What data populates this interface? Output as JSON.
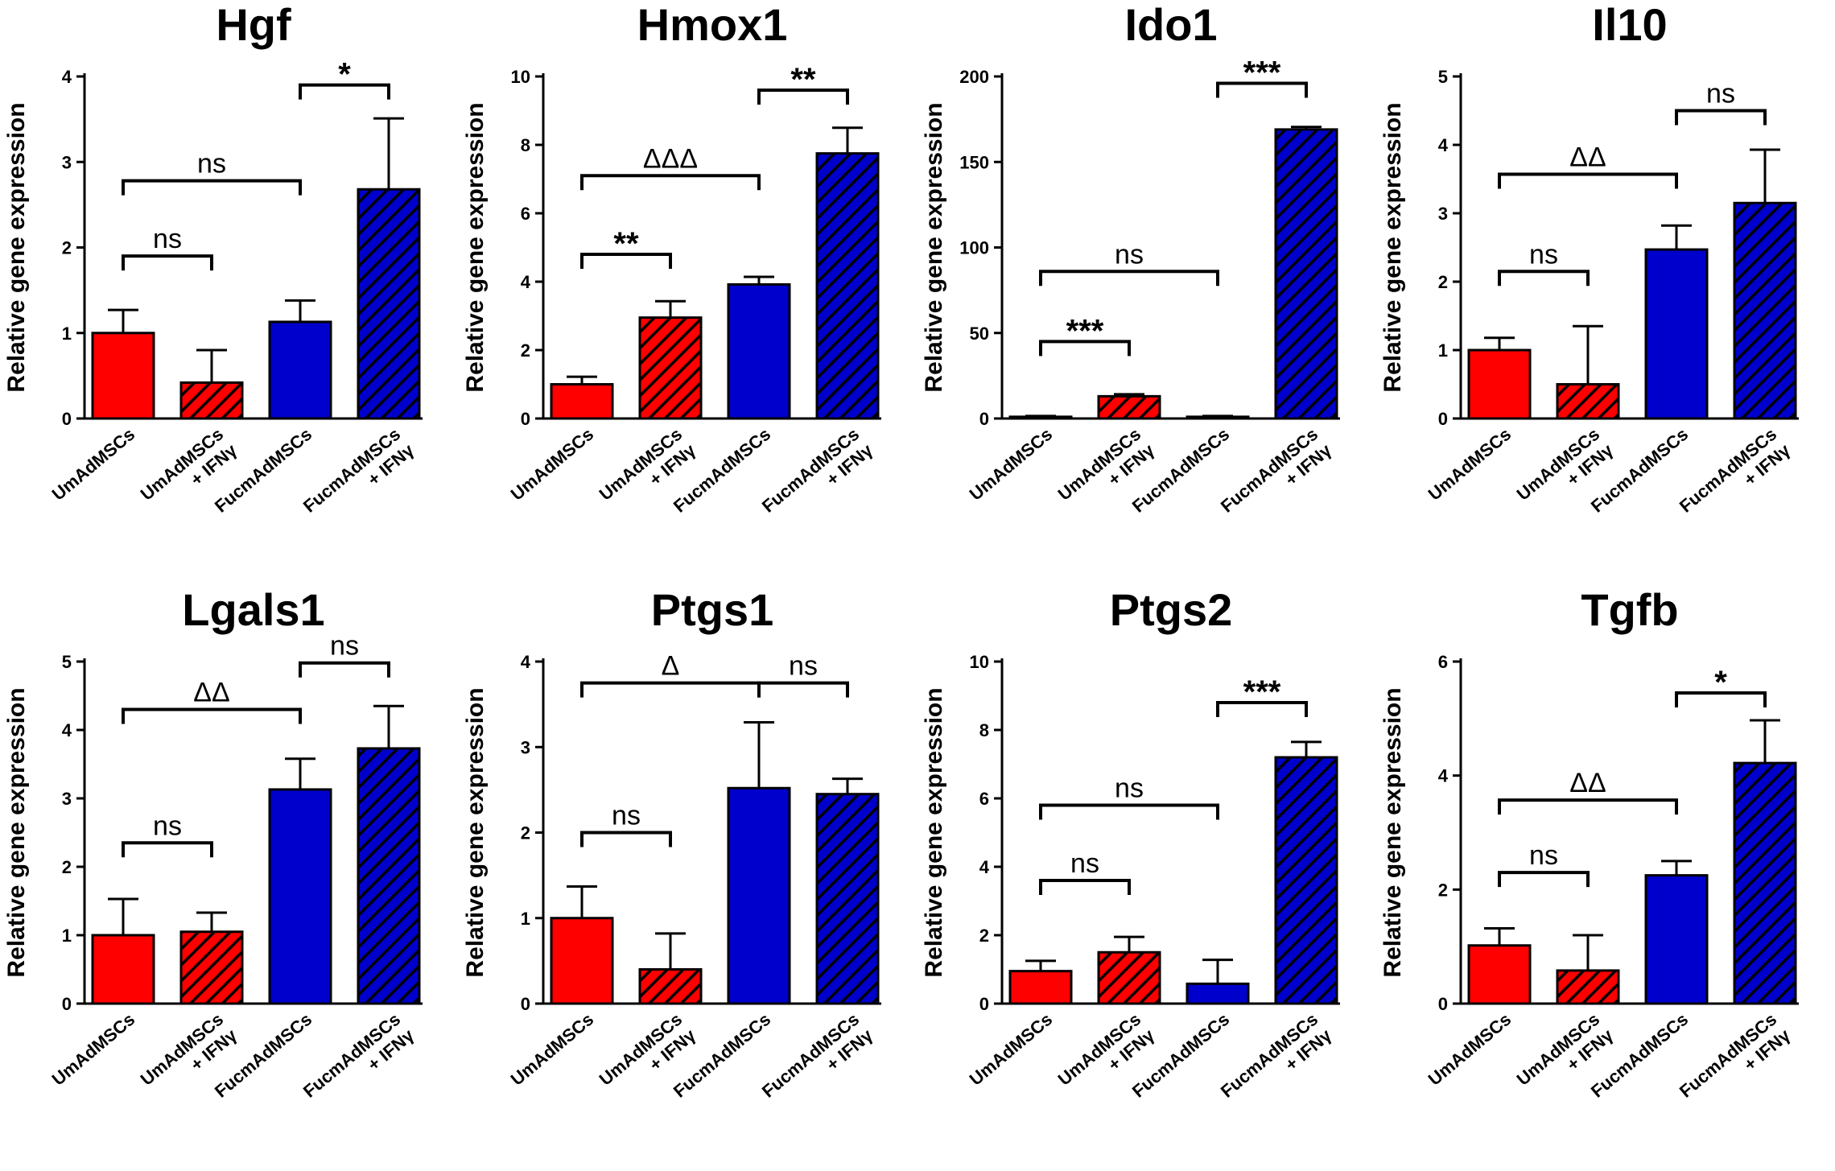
{
  "ylabel": "Relative gene expression",
  "categories": [
    "UmAdMSCs",
    "UmAdMSCs\n+ IFNγ",
    "FucmAdMSCs",
    "FucmAdMSCs\n+ IFNγ"
  ],
  "colors": {
    "red": "#ff0000",
    "blue": "#0000cc",
    "hatch": "#000000"
  },
  "chart_data": [
    {
      "type": "bar",
      "title": "Hgf",
      "ylabel": "Relative gene expression",
      "ylim": [
        0,
        4
      ],
      "yticks": [
        0,
        1,
        2,
        3,
        4
      ],
      "categories": [
        "UmAdMSCs",
        "UmAdMSCs + IFNγ",
        "FucmAdMSCs",
        "FucmAdMSCs + IFNγ"
      ],
      "values": [
        1.0,
        0.42,
        1.13,
        2.68
      ],
      "errors": [
        0.27,
        0.38,
        0.25,
        0.83
      ],
      "comparisons": [
        {
          "from": 0,
          "to": 1,
          "label": "ns",
          "y": 1.9
        },
        {
          "from": 0,
          "to": 2,
          "label": "ns",
          "y": 2.78
        },
        {
          "from": 2,
          "to": 3,
          "label": "*",
          "y": 3.9
        }
      ]
    },
    {
      "type": "bar",
      "title": "Hmox1",
      "ylabel": "Relative gene expression",
      "ylim": [
        0,
        10
      ],
      "yticks": [
        0,
        2,
        4,
        6,
        8,
        10
      ],
      "categories": [
        "UmAdMSCs",
        "UmAdMSCs + IFNγ",
        "FucmAdMSCs",
        "FucmAdMSCs + IFNγ"
      ],
      "values": [
        1.0,
        2.95,
        3.92,
        7.75
      ],
      "errors": [
        0.22,
        0.48,
        0.22,
        0.75
      ],
      "comparisons": [
        {
          "from": 0,
          "to": 1,
          "label": "**",
          "y": 4.8
        },
        {
          "from": 0,
          "to": 2,
          "label": "ΔΔΔ",
          "y": 7.1
        },
        {
          "from": 2,
          "to": 3,
          "label": "**",
          "y": 9.6
        }
      ]
    },
    {
      "type": "bar",
      "title": "Ido1",
      "ylabel": "Relative gene expression",
      "ylim": [
        0,
        200
      ],
      "yticks": [
        0,
        50,
        100,
        150,
        200
      ],
      "categories": [
        "UmAdMSCs",
        "UmAdMSCs + IFNγ",
        "FucmAdMSCs",
        "FucmAdMSCs + IFNγ"
      ],
      "values": [
        1.0,
        13.0,
        1.0,
        169.0
      ],
      "errors": [
        0.5,
        1.2,
        0.5,
        1.5
      ],
      "comparisons": [
        {
          "from": 0,
          "to": 1,
          "label": "***",
          "y": 45
        },
        {
          "from": 0,
          "to": 2,
          "label": "ns",
          "y": 86
        },
        {
          "from": 2,
          "to": 3,
          "label": "***",
          "y": 196
        }
      ]
    },
    {
      "type": "bar",
      "title": "Il10",
      "ylabel": "Relative gene expression",
      "ylim": [
        0,
        5
      ],
      "yticks": [
        0,
        1,
        2,
        3,
        4,
        5
      ],
      "categories": [
        "UmAdMSCs",
        "UmAdMSCs + IFNγ",
        "FucmAdMSCs",
        "FucmAdMSCs + IFNγ"
      ],
      "values": [
        1.0,
        0.5,
        2.47,
        3.15
      ],
      "errors": [
        0.18,
        0.85,
        0.35,
        0.78
      ],
      "comparisons": [
        {
          "from": 0,
          "to": 1,
          "label": "ns",
          "y": 2.15
        },
        {
          "from": 0,
          "to": 2,
          "label": "ΔΔ",
          "y": 3.57
        },
        {
          "from": 2,
          "to": 3,
          "label": "ns",
          "y": 4.5
        }
      ]
    },
    {
      "type": "bar",
      "title": "Lgals1",
      "ylabel": "Relative gene expression",
      "ylim": [
        0,
        5
      ],
      "yticks": [
        0,
        1,
        2,
        3,
        4,
        5
      ],
      "categories": [
        "UmAdMSCs",
        "UmAdMSCs + IFNγ",
        "FucmAdMSCs",
        "FucmAdMSCs + IFNγ"
      ],
      "values": [
        1.0,
        1.05,
        3.13,
        3.73
      ],
      "errors": [
        0.53,
        0.28,
        0.45,
        0.62
      ],
      "comparisons": [
        {
          "from": 0,
          "to": 1,
          "label": "ns",
          "y": 2.35
        },
        {
          "from": 0,
          "to": 2,
          "label": "ΔΔ",
          "y": 4.3
        },
        {
          "from": 2,
          "to": 3,
          "label": "ns",
          "y": 4.98
        }
      ]
    },
    {
      "type": "bar",
      "title": "Ptgs1",
      "ylabel": "Relative gene expression",
      "ylim": [
        0,
        4
      ],
      "yticks": [
        0,
        1,
        2,
        3,
        4
      ],
      "categories": [
        "UmAdMSCs",
        "UmAdMSCs + IFNγ",
        "FucmAdMSCs",
        "FucmAdMSCs + IFNγ"
      ],
      "values": [
        1.0,
        0.4,
        2.52,
        2.45
      ],
      "errors": [
        0.37,
        0.42,
        0.77,
        0.18
      ],
      "comparisons": [
        {
          "from": 0,
          "to": 1,
          "label": "ns",
          "y": 2.0
        },
        {
          "from": 0,
          "to": 2,
          "label": "Δ",
          "y": 3.75
        },
        {
          "from": 2,
          "to": 3,
          "label": "ns",
          "y": 3.75
        }
      ]
    },
    {
      "type": "bar",
      "title": "Ptgs2",
      "ylabel": "Relative gene expression",
      "ylim": [
        0,
        10
      ],
      "yticks": [
        0,
        2,
        4,
        6,
        8,
        10
      ],
      "categories": [
        "UmAdMSCs",
        "UmAdMSCs + IFNγ",
        "FucmAdMSCs",
        "FucmAdMSCs + IFNγ"
      ],
      "values": [
        0.95,
        1.5,
        0.58,
        7.2
      ],
      "errors": [
        0.3,
        0.45,
        0.7,
        0.45
      ],
      "comparisons": [
        {
          "from": 0,
          "to": 1,
          "label": "ns",
          "y": 3.6
        },
        {
          "from": 0,
          "to": 2,
          "label": "ns",
          "y": 5.8
        },
        {
          "from": 2,
          "to": 3,
          "label": "***",
          "y": 8.8
        }
      ]
    },
    {
      "type": "bar",
      "title": "Tgfb",
      "ylabel": "Relative gene expression",
      "ylim": [
        0,
        6
      ],
      "yticks": [
        0,
        2,
        4,
        6
      ],
      "categories": [
        "UmAdMSCs",
        "UmAdMSCs + IFNγ",
        "FucmAdMSCs",
        "FucmAdMSCs + IFNγ"
      ],
      "values": [
        1.02,
        0.58,
        2.25,
        4.22
      ],
      "errors": [
        0.3,
        0.62,
        0.25,
        0.75
      ],
      "comparisons": [
        {
          "from": 0,
          "to": 1,
          "label": "ns",
          "y": 2.3
        },
        {
          "from": 0,
          "to": 2,
          "label": "ΔΔ",
          "y": 3.57
        },
        {
          "from": 2,
          "to": 3,
          "label": "*",
          "y": 5.45
        }
      ]
    }
  ]
}
